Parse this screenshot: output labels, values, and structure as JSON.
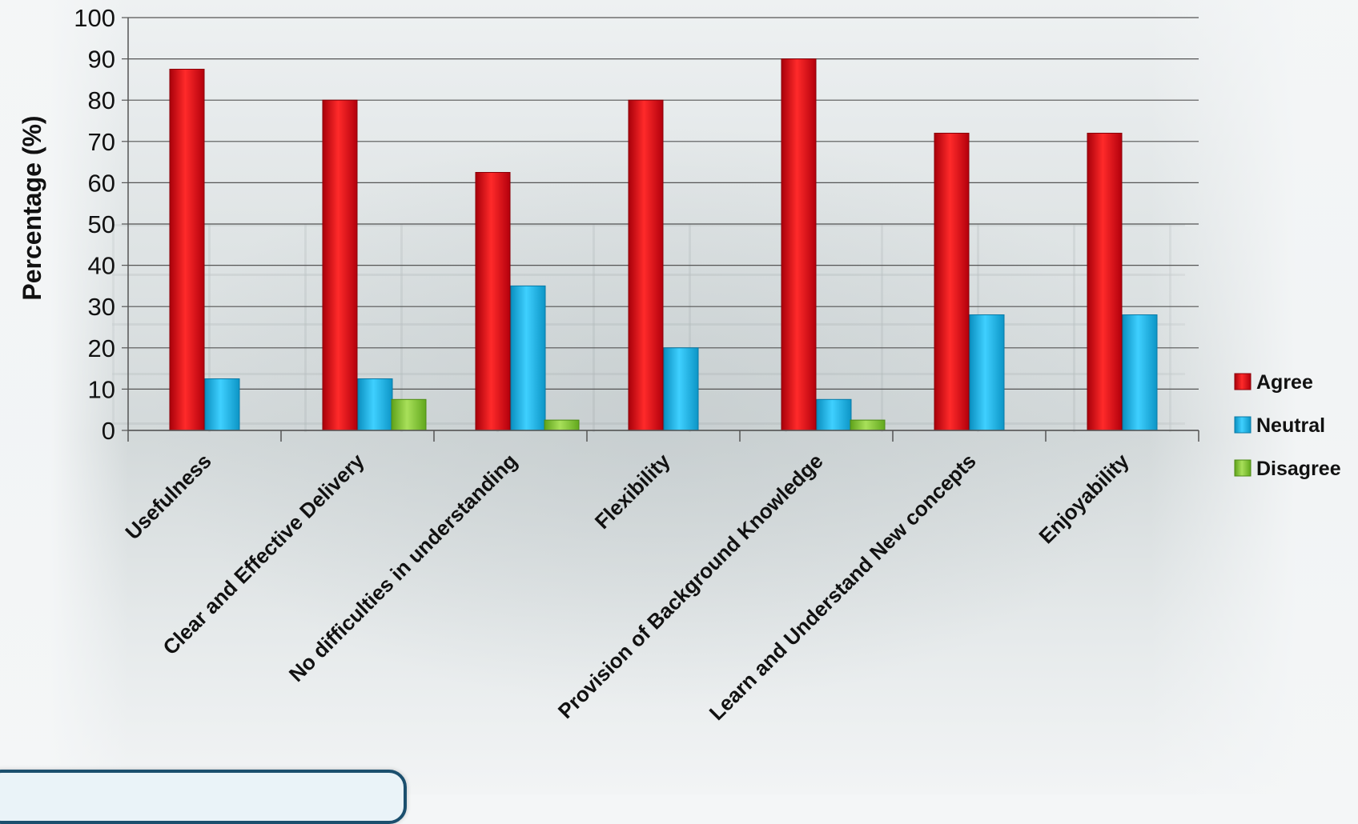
{
  "chart_data": {
    "type": "bar",
    "title": "",
    "xlabel": "",
    "ylabel": "Percentage (%)",
    "ylim": [
      0,
      100
    ],
    "yticks": [
      0,
      10,
      20,
      30,
      40,
      50,
      60,
      70,
      80,
      90,
      100
    ],
    "grid": true,
    "legend_position": "right",
    "categories": [
      "Usefulness",
      "Clear and Effective Delivery",
      "No difficulties in understanding",
      "Flexibility",
      "Provision of Background Knowledge",
      "Learn and Understand New concepts",
      "Enjoyability"
    ],
    "series": [
      {
        "name": "Agree",
        "color": "#e3000f",
        "values": [
          87.5,
          80,
          62.5,
          80,
          90,
          72,
          72
        ]
      },
      {
        "name": "Neutral",
        "color": "#17b4e8",
        "values": [
          12.5,
          12.5,
          35,
          20,
          7.5,
          28,
          28
        ]
      },
      {
        "name": "Disagree",
        "color": "#8ccd3a",
        "values": [
          0,
          7.5,
          2.5,
          0,
          2.5,
          0,
          0
        ]
      }
    ]
  }
}
